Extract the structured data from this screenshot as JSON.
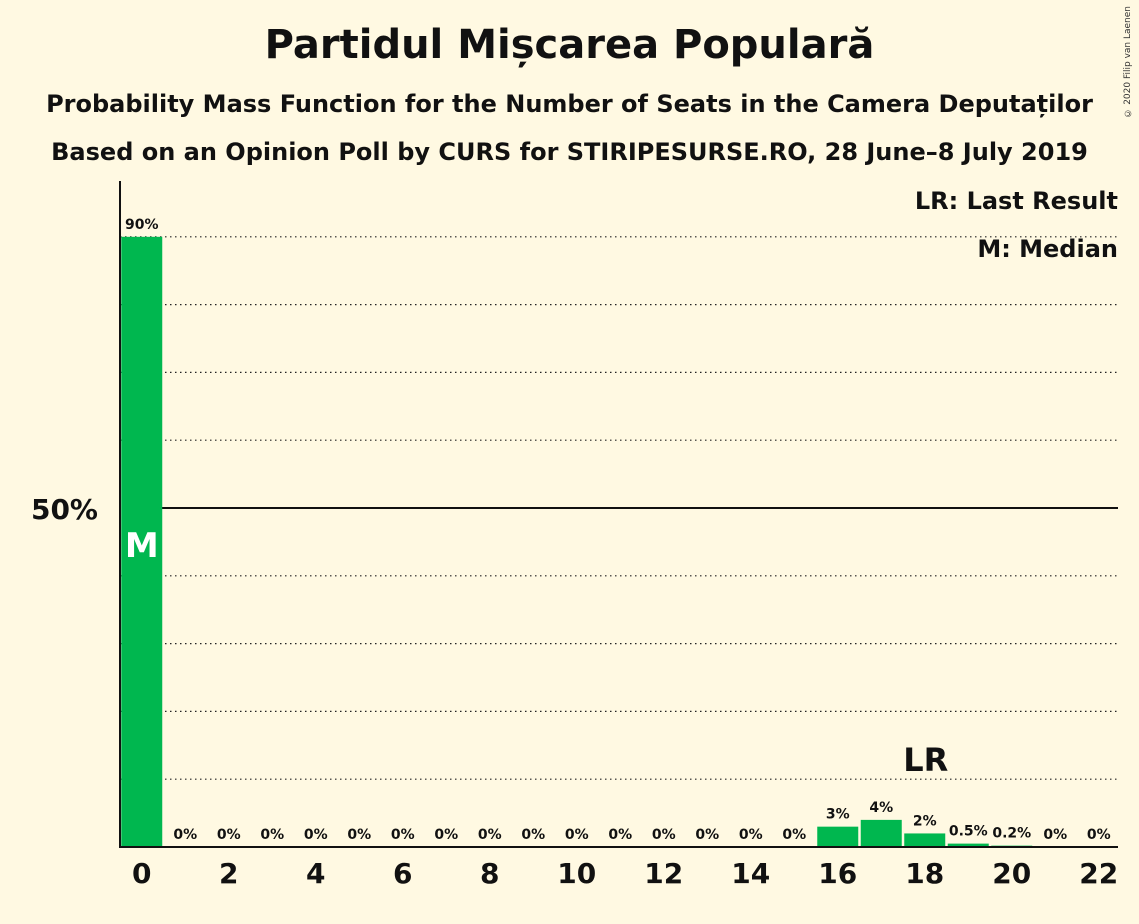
{
  "title": "Partidul Mișcarea Populară",
  "subtitle1": "Probability Mass Function for the Number of Seats in the Camera Deputaților",
  "subtitle2": "Based on an Opinion Poll by CURS for STIRIPESURSE.RO, 28 June–8 July 2019",
  "copyright": "© 2020 Filip van Laenen",
  "legend": {
    "last_result": "LR: Last Result",
    "median": "M: Median"
  },
  "colors": {
    "bar": "#00B74F",
    "background": "#FFF9E2"
  },
  "chart_data": {
    "type": "bar",
    "x": [
      0,
      1,
      2,
      3,
      4,
      5,
      6,
      7,
      8,
      9,
      10,
      11,
      12,
      13,
      14,
      15,
      16,
      17,
      18,
      19,
      20,
      21,
      22
    ],
    "values": [
      90,
      0,
      0,
      0,
      0,
      0,
      0,
      0,
      0,
      0,
      0,
      0,
      0,
      0,
      0,
      0,
      3,
      4,
      2,
      0.5,
      0.2,
      0,
      0
    ],
    "labels": [
      "90%",
      "0%",
      "0%",
      "0%",
      "0%",
      "0%",
      "0%",
      "0%",
      "0%",
      "0%",
      "0%",
      "0%",
      "0%",
      "0%",
      "0%",
      "0%",
      "3%",
      "4%",
      "2%",
      "0.5%",
      "0.2%",
      "0%",
      "0%"
    ],
    "x_tick_labels": [
      "0",
      "2",
      "4",
      "6",
      "8",
      "10",
      "12",
      "14",
      "16",
      "18",
      "20",
      "22"
    ],
    "y_tick_labels": [
      "50%"
    ],
    "ylim": [
      0,
      100
    ],
    "gridlines": [
      10,
      20,
      30,
      40,
      60,
      70,
      80,
      90
    ],
    "median": {
      "seat": 0,
      "label": "M"
    },
    "last_result": {
      "seat": 18,
      "label": "LR"
    }
  }
}
